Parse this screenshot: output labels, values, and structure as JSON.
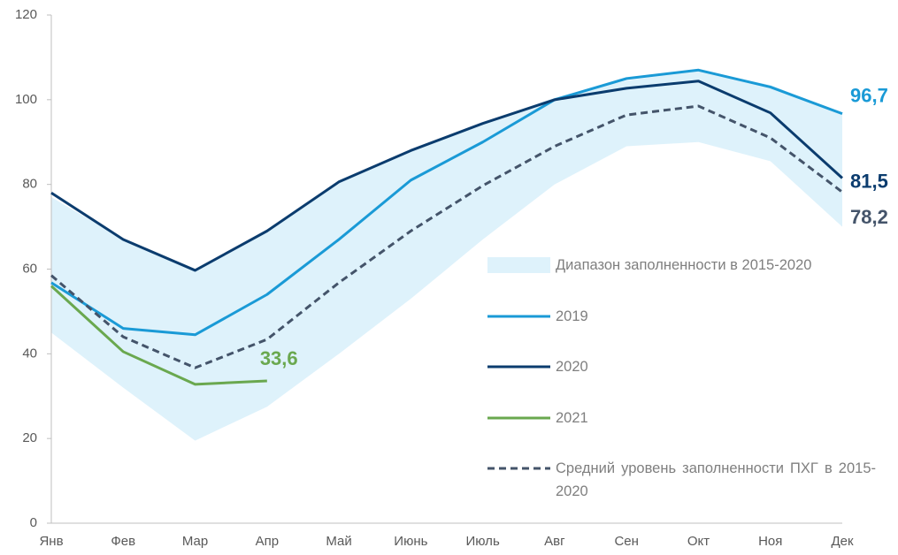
{
  "chart_data": {
    "type": "line",
    "categories": [
      "Янв",
      "Фев",
      "Мар",
      "Апр",
      "Май",
      "Июнь",
      "Июль",
      "Авг",
      "Сен",
      "Окт",
      "Ноя",
      "Дек"
    ],
    "ylim": [
      0,
      120
    ],
    "yticks": [
      0,
      20,
      40,
      60,
      80,
      100,
      120
    ],
    "band": {
      "name": "Диапазон заполненности в 2015-2020",
      "color": "#def2fb",
      "lower": [
        45,
        32,
        19.5,
        27.5,
        40,
        53,
        67,
        80,
        89,
        90,
        85.5,
        70
      ],
      "upper": [
        77,
        67,
        60,
        69,
        81,
        88,
        94.5,
        100.5,
        104.5,
        107,
        103.5,
        96.7
      ]
    },
    "series": [
      {
        "name": "2019",
        "color": "#1a9ad6",
        "dash": false,
        "values": [
          56.8,
          46,
          44.5,
          54,
          67,
          81,
          90,
          100,
          105,
          107,
          103,
          96.7
        ],
        "value_labels": [
          null,
          null,
          null,
          null,
          null,
          null,
          null,
          null,
          null,
          null,
          null,
          "96,7"
        ]
      },
      {
        "name": "2020",
        "color": "#0b3c6e",
        "dash": false,
        "values": [
          78,
          67,
          59.7,
          69,
          80.6,
          88,
          94.4,
          100,
          102.7,
          104.4,
          96.9,
          81.5
        ],
        "value_labels": [
          null,
          null,
          null,
          null,
          null,
          null,
          null,
          null,
          null,
          null,
          null,
          "81,5"
        ]
      },
      {
        "name": "2021",
        "color": "#6aa84f",
        "dash": false,
        "values": [
          56,
          40.5,
          32.8,
          33.6,
          null,
          null,
          null,
          null,
          null,
          null,
          null,
          null
        ],
        "value_labels": [
          null,
          null,
          null,
          "33,6",
          null,
          null,
          null,
          null,
          null,
          null,
          null,
          null
        ]
      },
      {
        "name": "Средний уровень заполненности ПХГ в 2015-2020",
        "color": "#44546a",
        "dash": true,
        "values": [
          58.5,
          44,
          36.7,
          43.4,
          56.8,
          69,
          79.7,
          89,
          96.4,
          98.5,
          91,
          78.2
        ],
        "value_labels": [
          null,
          null,
          null,
          null,
          null,
          null,
          null,
          null,
          null,
          null,
          null,
          "78,2"
        ]
      }
    ]
  }
}
